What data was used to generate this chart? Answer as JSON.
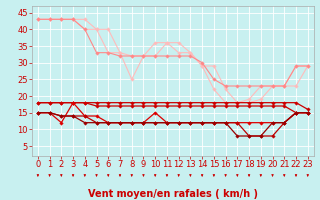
{
  "background_color": "#c8f0f0",
  "grid_color": "#ffffff",
  "xlabel": "Vent moyen/en rafales ( km/h )",
  "xlabel_color": "#cc0000",
  "xlabel_fontsize": 7,
  "tick_color": "#cc0000",
  "tick_fontsize": 6,
  "ylim": [
    2,
    47
  ],
  "xlim": [
    -0.5,
    23.5
  ],
  "yticks": [
    5,
    10,
    15,
    20,
    25,
    30,
    35,
    40,
    45
  ],
  "xticks": [
    0,
    1,
    2,
    3,
    4,
    5,
    6,
    7,
    8,
    9,
    10,
    11,
    12,
    13,
    14,
    15,
    16,
    17,
    18,
    19,
    20,
    21,
    22,
    23
  ],
  "series": [
    {
      "x": [
        0,
        1,
        2,
        3,
        4,
        5,
        6,
        7,
        8,
        9,
        10,
        11,
        12,
        13,
        14,
        15,
        16,
        17,
        18,
        19,
        20,
        21,
        22,
        23
      ],
      "y": [
        43,
        43,
        43,
        43,
        43,
        40,
        40,
        33,
        25,
        32,
        32,
        36,
        36,
        33,
        29,
        22,
        18,
        18,
        19,
        23,
        23,
        23,
        29,
        29
      ],
      "color": "#ffbbbb",
      "linewidth": 0.8,
      "marker": "D",
      "markersize": 1.8
    },
    {
      "x": [
        0,
        1,
        2,
        3,
        4,
        5,
        6,
        7,
        8,
        9,
        10,
        11,
        12,
        13,
        14,
        15,
        16,
        17,
        18,
        19,
        20,
        21,
        22,
        23
      ],
      "y": [
        43,
        43,
        43,
        43,
        40,
        40,
        33,
        33,
        32,
        32,
        36,
        36,
        33,
        33,
        29,
        29,
        22,
        18,
        18,
        19,
        23,
        23,
        23,
        29
      ],
      "color": "#ffbbbb",
      "linewidth": 0.8,
      "marker": "D",
      "markersize": 1.8
    },
    {
      "x": [
        0,
        1,
        2,
        3,
        4,
        5,
        6,
        7,
        8,
        9,
        10,
        11,
        12,
        13,
        14,
        15,
        16,
        17,
        18,
        19,
        20,
        21,
        22,
        23
      ],
      "y": [
        43,
        43,
        43,
        43,
        40,
        33,
        33,
        32,
        32,
        32,
        32,
        32,
        32,
        32,
        30,
        25,
        23,
        23,
        23,
        23,
        23,
        23,
        29,
        29
      ],
      "color": "#ff8888",
      "linewidth": 0.8,
      "marker": "D",
      "markersize": 1.8
    },
    {
      "x": [
        0,
        1,
        2,
        3,
        4,
        5,
        6,
        7,
        8,
        9,
        10,
        11,
        12,
        13,
        14,
        15,
        16,
        17,
        18,
        19,
        20,
        21,
        22,
        23
      ],
      "y": [
        18,
        18,
        18,
        18,
        18,
        18,
        18,
        18,
        18,
        18,
        18,
        18,
        18,
        18,
        18,
        18,
        18,
        18,
        18,
        18,
        18,
        18,
        18,
        16
      ],
      "color": "#cc0000",
      "linewidth": 0.9,
      "marker": "D",
      "markersize": 1.8
    },
    {
      "x": [
        0,
        1,
        2,
        3,
        4,
        5,
        6,
        7,
        8,
        9,
        10,
        11,
        12,
        13,
        14,
        15,
        16,
        17,
        18,
        19,
        20,
        21,
        22,
        23
      ],
      "y": [
        18,
        18,
        18,
        18,
        18,
        17,
        17,
        17,
        17,
        17,
        17,
        17,
        17,
        17,
        17,
        17,
        17,
        17,
        17,
        17,
        17,
        17,
        15,
        15
      ],
      "color": "#cc0000",
      "linewidth": 0.9,
      "marker": "D",
      "markersize": 1.8
    },
    {
      "x": [
        0,
        1,
        2,
        3,
        4,
        5,
        6,
        7,
        8,
        9,
        10,
        11,
        12,
        13,
        14,
        15,
        16,
        17,
        18,
        19,
        20,
        21,
        22,
        23
      ],
      "y": [
        15,
        15,
        12,
        18,
        14,
        14,
        12,
        12,
        12,
        12,
        15,
        12,
        12,
        12,
        12,
        12,
        12,
        12,
        12,
        12,
        12,
        12,
        15,
        15
      ],
      "color": "#dd0000",
      "linewidth": 0.9,
      "marker": "D",
      "markersize": 1.8
    },
    {
      "x": [
        0,
        1,
        2,
        3,
        4,
        5,
        6,
        7,
        8,
        9,
        10,
        11,
        12,
        13,
        14,
        15,
        16,
        17,
        18,
        19,
        20,
        21,
        22,
        23
      ],
      "y": [
        15,
        15,
        14,
        14,
        14,
        12,
        12,
        12,
        12,
        12,
        12,
        12,
        12,
        12,
        12,
        12,
        12,
        12,
        8,
        8,
        8,
        12,
        15,
        15
      ],
      "color": "#bb0000",
      "linewidth": 0.9,
      "marker": "D",
      "markersize": 1.8
    },
    {
      "x": [
        0,
        1,
        2,
        3,
        4,
        5,
        6,
        7,
        8,
        9,
        10,
        11,
        12,
        13,
        14,
        15,
        16,
        17,
        18,
        19,
        20,
        21,
        22,
        23
      ],
      "y": [
        15,
        15,
        14,
        14,
        12,
        12,
        12,
        12,
        12,
        12,
        12,
        12,
        12,
        12,
        12,
        12,
        12,
        8,
        8,
        8,
        12,
        12,
        15,
        15
      ],
      "color": "#990000",
      "linewidth": 0.9,
      "marker": "D",
      "markersize": 1.8
    }
  ]
}
